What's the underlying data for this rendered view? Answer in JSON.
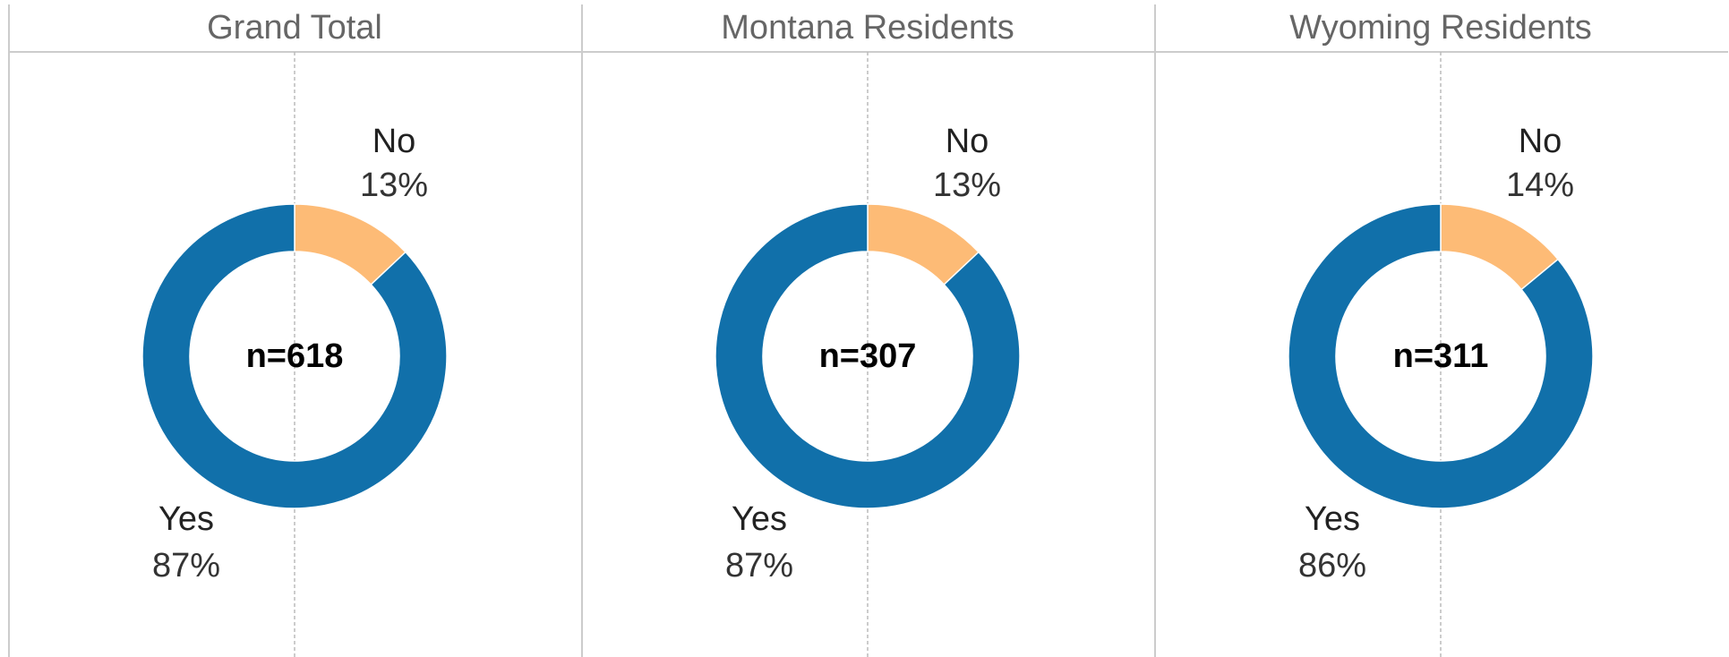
{
  "chart_data": [
    {
      "type": "pie",
      "title": "Grand Total",
      "center_label": "n=618",
      "categories": [
        "No",
        "Yes"
      ],
      "values": [
        13,
        87
      ],
      "value_labels": [
        "13%",
        "87%"
      ],
      "colors": [
        "#fdbb76",
        "#1170aa"
      ]
    },
    {
      "type": "pie",
      "title": "Montana Residents",
      "center_label": "n=307",
      "categories": [
        "No",
        "Yes"
      ],
      "values": [
        13,
        87
      ],
      "value_labels": [
        "13%",
        "87%"
      ],
      "colors": [
        "#fdbb76",
        "#1170aa"
      ]
    },
    {
      "type": "pie",
      "title": "Wyoming Residents",
      "center_label": "n=311",
      "categories": [
        "No",
        "Yes"
      ],
      "values": [
        14,
        86
      ],
      "value_labels": [
        "14%",
        "86%"
      ],
      "colors": [
        "#fdbb76",
        "#1170aa"
      ]
    }
  ]
}
